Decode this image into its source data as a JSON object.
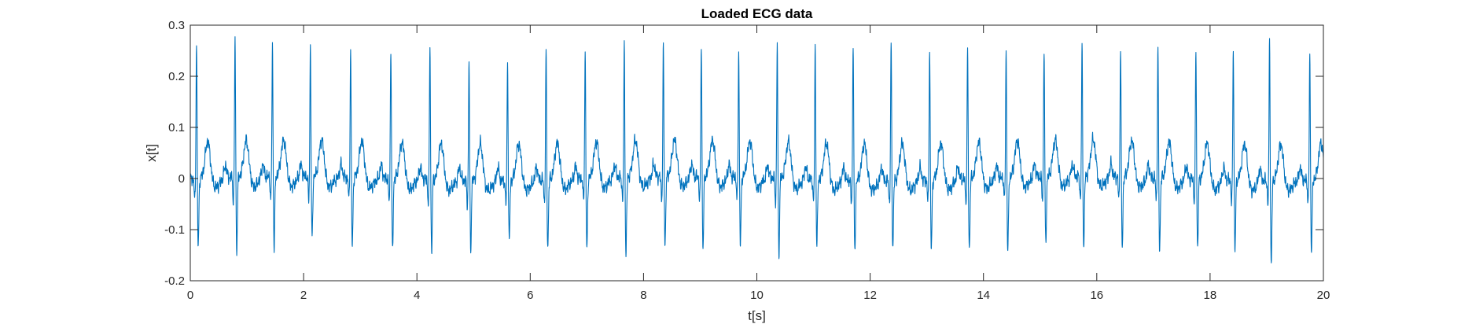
{
  "chart_data": {
    "type": "line",
    "title": "Loaded ECG data",
    "xlabel": "t[s]",
    "ylabel": "x[t]",
    "xlim": [
      0,
      20
    ],
    "ylim": [
      -0.2,
      0.3
    ],
    "xticks": [
      0,
      2,
      4,
      6,
      8,
      10,
      12,
      14,
      16,
      18,
      20
    ],
    "xtick_labels": [
      "0",
      "2",
      "4",
      "6",
      "8",
      "10",
      "12",
      "14",
      "16",
      "18",
      "20"
    ],
    "yticks": [
      -0.2,
      -0.1,
      0,
      0.1,
      0.2,
      0.3
    ],
    "ytick_labels": [
      "-0.2",
      "-0.1",
      "0",
      "0.1",
      "0.2",
      "0.3"
    ],
    "grid": false,
    "box": true,
    "line_color": "#0072BD",
    "axis_color": "#262626",
    "series": [
      {
        "beats": [
          {
            "t": 0.11,
            "r": 0.27,
            "s": -0.135
          },
          {
            "t": 0.79,
            "r": 0.275,
            "s": -0.14
          },
          {
            "t": 1.45,
            "r": 0.26,
            "s": -0.137
          },
          {
            "t": 2.12,
            "r": 0.258,
            "s": -0.12
          },
          {
            "t": 2.83,
            "r": 0.255,
            "s": -0.135
          },
          {
            "t": 3.54,
            "r": 0.26,
            "s": -0.142
          },
          {
            "t": 4.23,
            "r": 0.265,
            "s": -0.14
          },
          {
            "t": 4.92,
            "r": 0.235,
            "s": -0.135
          },
          {
            "t": 5.6,
            "r": 0.232,
            "s": -0.12
          },
          {
            "t": 6.28,
            "r": 0.255,
            "s": -0.135
          },
          {
            "t": 6.97,
            "r": 0.25,
            "s": -0.142
          },
          {
            "t": 7.66,
            "r": 0.26,
            "s": -0.153
          },
          {
            "t": 8.35,
            "r": 0.256,
            "s": -0.135
          },
          {
            "t": 9.02,
            "r": 0.262,
            "s": -0.14
          },
          {
            "t": 9.68,
            "r": 0.25,
            "s": -0.13
          },
          {
            "t": 10.36,
            "r": 0.265,
            "s": -0.145
          },
          {
            "t": 11.03,
            "r": 0.26,
            "s": -0.13
          },
          {
            "t": 11.7,
            "r": 0.275,
            "s": -0.14
          },
          {
            "t": 12.37,
            "r": 0.27,
            "s": -0.132
          },
          {
            "t": 13.05,
            "r": 0.262,
            "s": -0.135
          },
          {
            "t": 13.72,
            "r": 0.256,
            "s": -0.14
          },
          {
            "t": 14.4,
            "r": 0.252,
            "s": -0.147
          },
          {
            "t": 15.07,
            "r": 0.255,
            "s": -0.13
          },
          {
            "t": 15.74,
            "r": 0.258,
            "s": -0.135
          },
          {
            "t": 16.42,
            "r": 0.26,
            "s": -0.14
          },
          {
            "t": 17.08,
            "r": 0.255,
            "s": -0.14
          },
          {
            "t": 17.75,
            "r": 0.255,
            "s": -0.135
          },
          {
            "t": 18.41,
            "r": 0.262,
            "s": -0.137
          },
          {
            "t": 19.05,
            "r": 0.278,
            "s": -0.165
          },
          {
            "t": 19.76,
            "r": 0.25,
            "s": -0.135
          }
        ]
      }
    ]
  }
}
